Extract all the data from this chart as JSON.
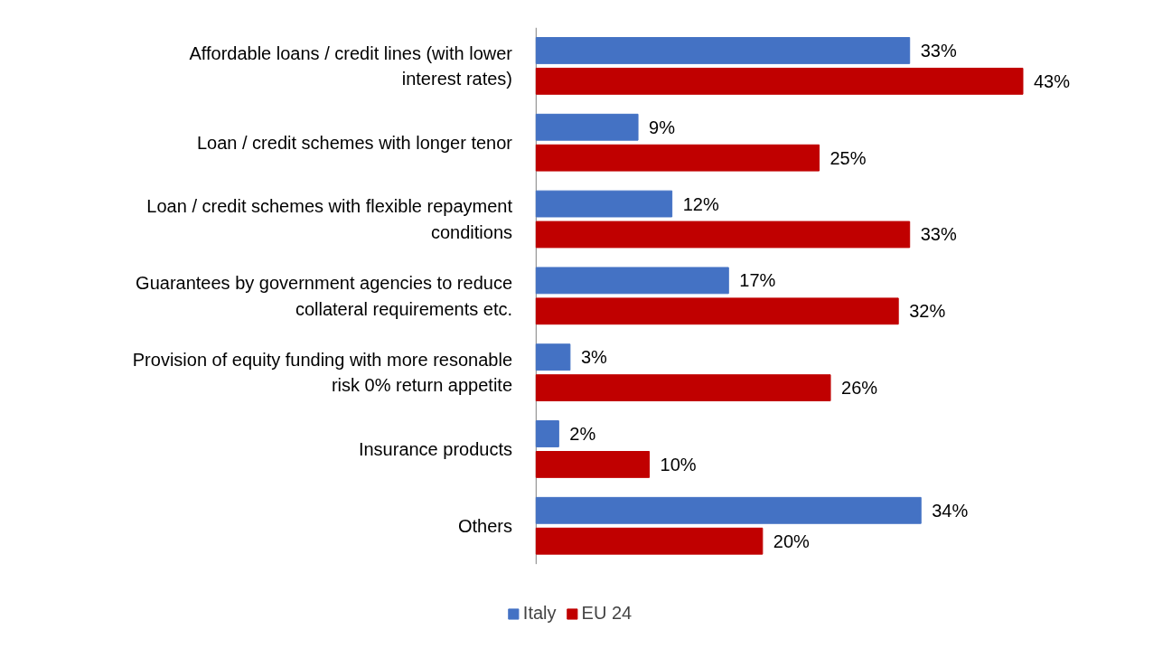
{
  "chart_data": {
    "type": "bar",
    "orientation": "horizontal",
    "categories": [
      "Affordable loans / credit lines (with lower interest rates)",
      "Loan / credit schemes with longer tenor",
      "Loan / credit schemes with flexible repayment conditions",
      "Guarantees by government agencies to reduce collateral requirements etc.",
      "Provision of equity funding with more resonable risk 0% return appetite",
      "Insurance products",
      "Others"
    ],
    "series": [
      {
        "name": "Italy",
        "color": "#4472c4",
        "values": [
          33,
          9,
          12,
          17,
          3,
          2,
          34
        ],
        "value_labels": [
          "33%",
          "9%",
          "12%",
          "17%",
          "3%",
          "2%",
          "34%"
        ]
      },
      {
        "name": "EU 24",
        "color": "#c00000",
        "values": [
          43,
          25,
          33,
          32,
          26,
          10,
          20
        ],
        "value_labels": [
          "43%",
          "25%",
          "33%",
          "32%",
          "26%",
          "10%",
          "20%"
        ]
      }
    ],
    "legend": "bottom"
  }
}
